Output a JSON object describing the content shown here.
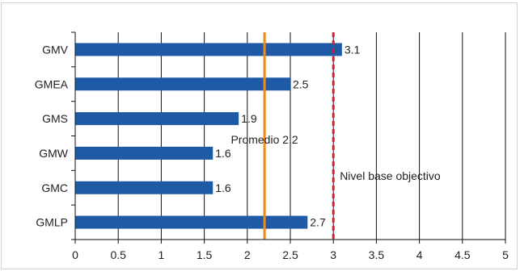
{
  "chart_data": {
    "type": "bar",
    "orientation": "horizontal",
    "categories": [
      "GMV",
      "GMEA",
      "GMS",
      "GMW",
      "GMC",
      "GMLP"
    ],
    "values": [
      3.1,
      2.5,
      1.9,
      1.6,
      1.6,
      2.7
    ],
    "value_labels": [
      "3.1",
      "2.5",
      "1.9",
      "1.6",
      "1.6",
      "2.7"
    ],
    "xlim": [
      0,
      5
    ],
    "xticks": [
      0,
      0.5,
      1,
      1.5,
      2,
      2.5,
      3,
      3.5,
      4,
      4.5,
      5
    ],
    "xtick_labels": [
      "0",
      "0.5",
      "1",
      "1.5",
      "2",
      "2.5",
      "3",
      "3.5",
      "4",
      "4.5",
      "5"
    ],
    "grid": "vertical",
    "bar_color": "#1f5aa6",
    "reference_lines": [
      {
        "value": 2.2,
        "label": "Promedio 2.2",
        "color": "#f08a1c",
        "style": "solid"
      },
      {
        "value": 3.0,
        "label": "Nivel base objectivo",
        "color": "#d0202a",
        "style": "dashed"
      }
    ]
  }
}
